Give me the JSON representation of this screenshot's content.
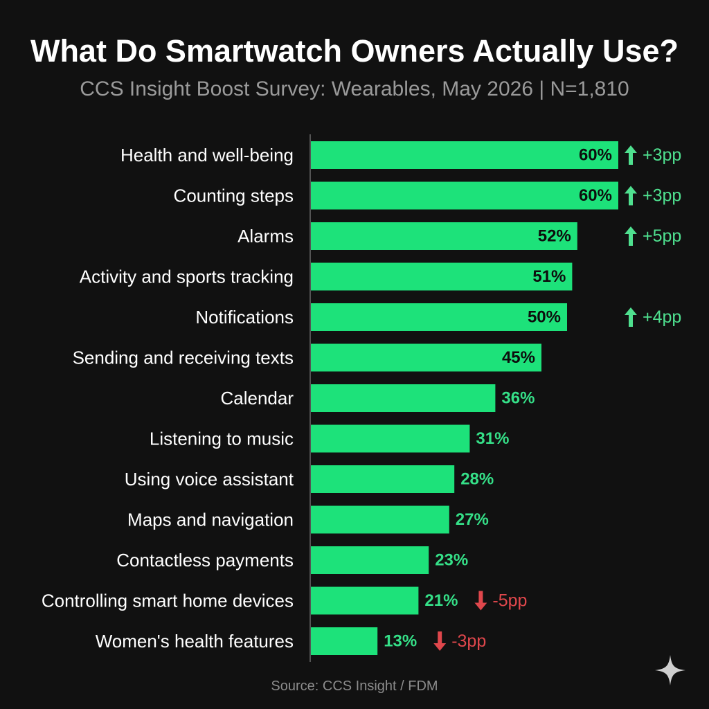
{
  "title": "What Do Smartwatch Owners Actually Use?",
  "subtitle": "CCS Insight Boost Survey: Wearables, May 2026 | N=1,810",
  "source": "Source: CCS Insight / FDM",
  "colors": {
    "background": "#111111",
    "bar": "#1de27a",
    "label_inside": "#0d0d0d",
    "label_outside": "#35e088",
    "increase": "#4fe08f",
    "decrease": "#e0474c",
    "axis": "#6a6a6a",
    "category_text": "#ffffff"
  },
  "icons": {
    "increase": "arrow-up-icon",
    "decrease": "arrow-down-icon",
    "corner": "sparkle-icon"
  },
  "chart_data": {
    "type": "bar",
    "orientation": "horizontal",
    "title": "What Do Smartwatch Owners Actually Use?",
    "subtitle": "CCS Insight Boost Survey: Wearables, May 2026 | N=1,810",
    "categories": [
      "Health and well-being",
      "Counting steps",
      "Alarms",
      "Activity and sports tracking",
      "Notifications",
      "Sending and receiving texts",
      "Calendar",
      "Listening to music",
      "Using voice assistant",
      "Maps and navigation",
      "Contactless payments",
      "Controlling smart home devices",
      "Women's health features"
    ],
    "values": [
      60,
      60,
      52,
      51,
      50,
      45,
      36,
      31,
      28,
      27,
      23,
      21,
      13
    ],
    "value_labels": [
      "60%",
      "60%",
      "52%",
      "51%",
      "50%",
      "45%",
      "36%",
      "31%",
      "28%",
      "27%",
      "23%",
      "21%",
      "13%"
    ],
    "changes": [
      {
        "category": "Health and well-being",
        "label": "+3pp",
        "direction": "up"
      },
      {
        "category": "Counting steps",
        "label": "+3pp",
        "direction": "up"
      },
      {
        "category": "Alarms",
        "label": "+5pp",
        "direction": "up"
      },
      {
        "category": "Notifications",
        "label": "+4pp",
        "direction": "up"
      },
      {
        "category": "Controlling smart home devices",
        "label": "-5pp",
        "direction": "down"
      },
      {
        "category": "Women's health features",
        "label": "-3pp",
        "direction": "down"
      }
    ],
    "xlim": [
      0,
      60
    ],
    "grid": false,
    "legend": "none"
  }
}
